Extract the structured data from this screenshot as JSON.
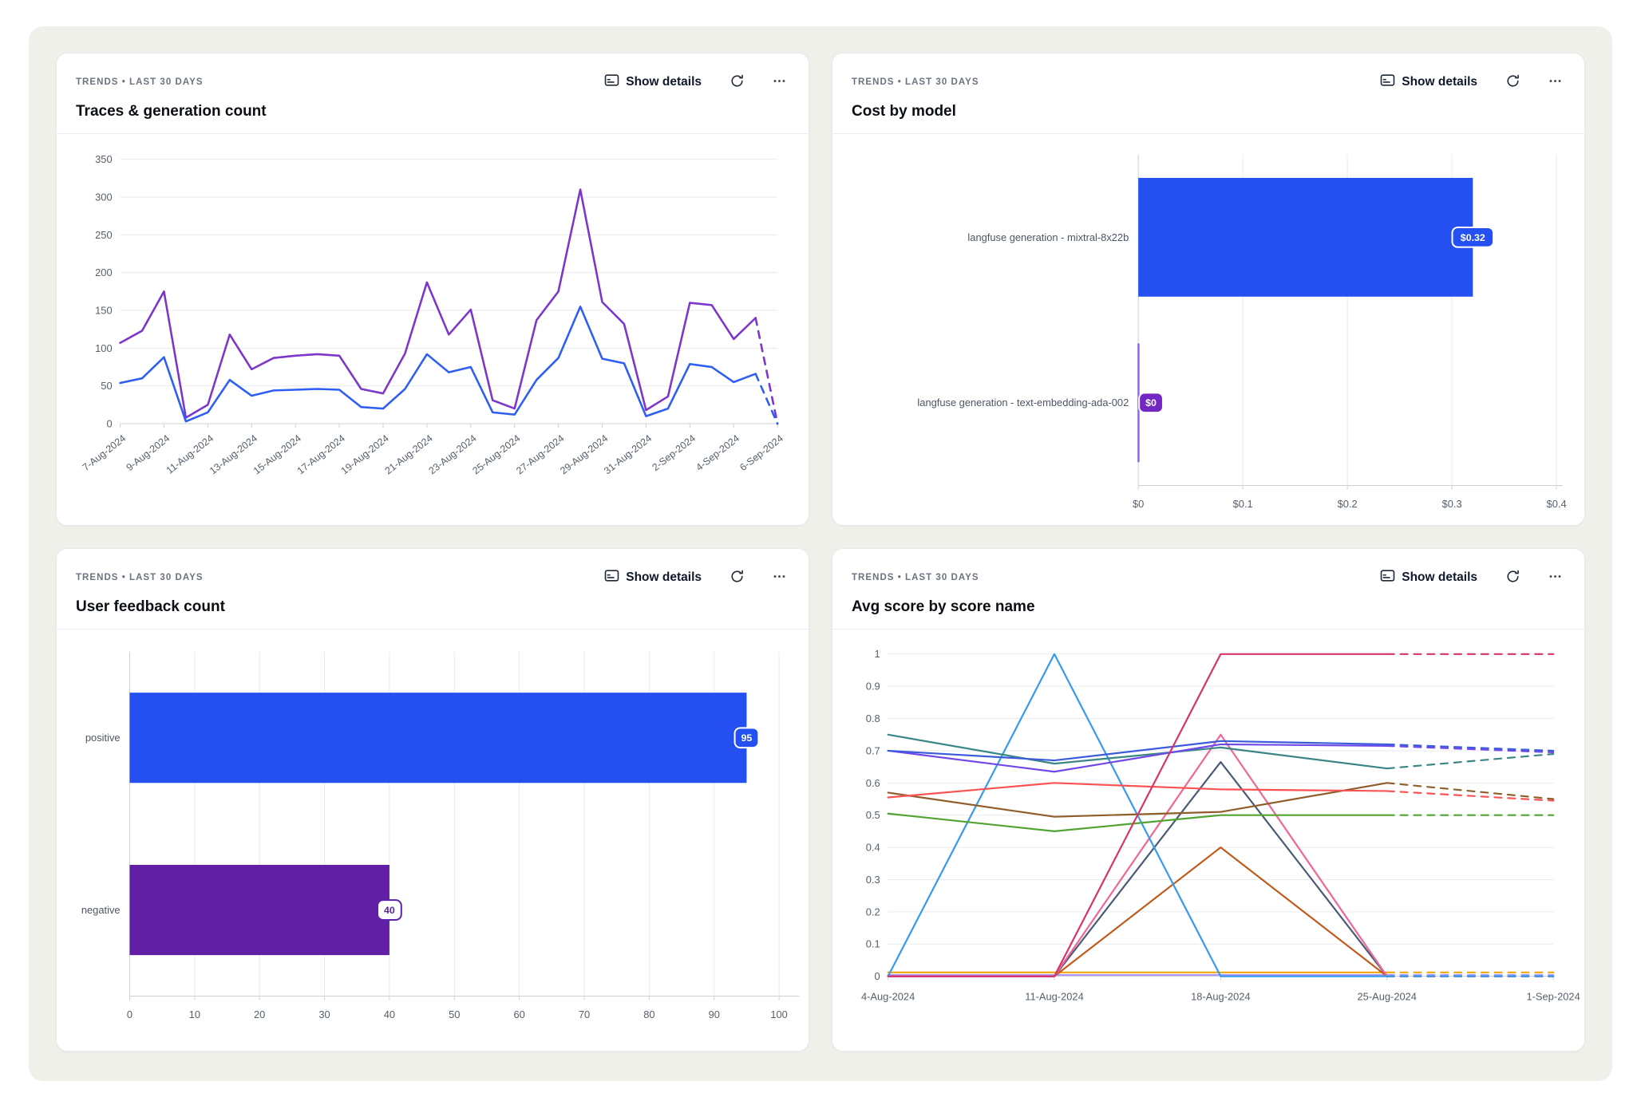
{
  "panel": {
    "background": "#f0f0ea"
  },
  "cards": [
    {
      "eyebrow": "TRENDS • LAST 30 DAYS",
      "title": "Traces & generation count",
      "show_details_label": "Show details"
    },
    {
      "eyebrow": "TRENDS • LAST 30 DAYS",
      "title": "Cost by model",
      "show_details_label": "Show details"
    },
    {
      "eyebrow": "TRENDS • LAST 30 DAYS",
      "title": "User feedback count",
      "show_details_label": "Show details"
    },
    {
      "eyebrow": "TRENDS • LAST 30 DAYS",
      "title": "Avg score by score name",
      "show_details_label": "Show details"
    }
  ],
  "chart_data": [
    {
      "type": "line",
      "title": "Traces & generation count",
      "x": [
        "7-Aug-2024",
        "8-Aug-2024",
        "9-Aug-2024",
        "10-Aug-2024",
        "11-Aug-2024",
        "12-Aug-2024",
        "13-Aug-2024",
        "14-Aug-2024",
        "15-Aug-2024",
        "16-Aug-2024",
        "17-Aug-2024",
        "18-Aug-2024",
        "19-Aug-2024",
        "20-Aug-2024",
        "21-Aug-2024",
        "22-Aug-2024",
        "23-Aug-2024",
        "24-Aug-2024",
        "25-Aug-2024",
        "26-Aug-2024",
        "27-Aug-2024",
        "28-Aug-2024",
        "29-Aug-2024",
        "30-Aug-2024",
        "31-Aug-2024",
        "1-Sep-2024",
        "2-Sep-2024",
        "3-Sep-2024",
        "4-Sep-2024",
        "5-Sep-2024",
        "6-Sep-2024"
      ],
      "tick_every": 2,
      "ylim": [
        0,
        350
      ],
      "y_step": 50,
      "dash_from": 29,
      "series": [
        {
          "name": "series-purple",
          "color": "#7c36c9",
          "values": [
            107,
            123,
            175,
            8,
            25,
            118,
            72,
            87,
            90,
            92,
            90,
            46,
            40,
            93,
            187,
            118,
            151,
            31,
            20,
            137,
            175,
            310,
            161,
            132,
            18,
            36,
            160,
            157,
            112,
            140,
            0
          ]
        },
        {
          "name": "series-blue",
          "color": "#2e5ff2",
          "values": [
            54,
            60,
            88,
            3,
            15,
            58,
            37,
            44,
            45,
            46,
            45,
            22,
            20,
            46,
            92,
            68,
            75,
            15,
            12,
            58,
            87,
            155,
            86,
            80,
            10,
            20,
            79,
            75,
            55,
            66,
            0
          ]
        }
      ]
    },
    {
      "type": "bar",
      "orientation": "horizontal",
      "title": "Cost by model",
      "categories": [
        "langfuse generation - mixtral-8x22b",
        "langfuse generation - text-embedding-ada-002"
      ],
      "values": [
        0.32,
        0
      ],
      "colors": [
        "#2450f2",
        "#9061f9"
      ],
      "badges": [
        {
          "text": "$0.32",
          "bg": "#2450f2",
          "fg": "#ffffff",
          "border": "#ffffff"
        },
        {
          "text": "$0",
          "bg": "#7227c4",
          "fg": "#ffffff",
          "border": "#ffffff"
        }
      ],
      "tick_values": [
        0,
        0.1,
        0.2,
        0.3,
        0.4
      ],
      "tick_labels": [
        "$0",
        "$0.1",
        "$0.2",
        "$0.3",
        "$0.4"
      ],
      "xlim": [
        0,
        0.4
      ]
    },
    {
      "type": "bar",
      "orientation": "horizontal",
      "title": "User feedback count",
      "categories": [
        "positive",
        "negative"
      ],
      "values": [
        95,
        40
      ],
      "colors": [
        "#2450f2",
        "#611fa5"
      ],
      "badges": [
        {
          "text": "95",
          "bg": "#2450f2",
          "fg": "#ffffff",
          "border": "#ffffff"
        },
        {
          "text": "40",
          "bg": "#ffffff",
          "fg": "#5b21a8",
          "border": "#5b21a8"
        }
      ],
      "tick_values": [
        0,
        10,
        20,
        30,
        40,
        50,
        60,
        70,
        80,
        90,
        100
      ],
      "tick_labels": [
        "0",
        "10",
        "20",
        "30",
        "40",
        "50",
        "60",
        "70",
        "80",
        "90",
        "100"
      ],
      "xlim": [
        0,
        100
      ]
    },
    {
      "type": "line",
      "title": "Avg score by score name",
      "x": [
        "4-Aug-2024",
        "11-Aug-2024",
        "18-Aug-2024",
        "25-Aug-2024",
        "1-Sep-2024"
      ],
      "tick_every": 1,
      "ylim": [
        0,
        1
      ],
      "y_step": 0.1,
      "dash_from": 3,
      "series": [
        {
          "name": "series-lavender",
          "color": "#b197fc",
          "values": [
            0.004,
            0.004,
            0.004,
            0.004,
            0.004
          ]
        },
        {
          "name": "series-amber",
          "color": "#f2a50c",
          "values": [
            0.012,
            0.012,
            0.012,
            0.012,
            0.012
          ]
        },
        {
          "name": "series-slate",
          "color": "#495a77",
          "values": [
            0,
            0,
            0.665,
            0,
            0
          ]
        },
        {
          "name": "series-chocolate",
          "color": "#bf5b1d",
          "values": [
            0,
            0,
            0.4,
            0,
            0
          ]
        },
        {
          "name": "series-pink",
          "color": "#f06595",
          "values": [
            0,
            0,
            0.75,
            0,
            0
          ]
        },
        {
          "name": "series-dodger-blue",
          "color": "#339af0",
          "values": [
            0,
            1,
            0,
            0,
            0
          ]
        },
        {
          "name": "series-green",
          "color": "#51a332",
          "values": [
            0.505,
            0.45,
            0.5,
            0.5,
            0.5
          ]
        },
        {
          "name": "series-brown",
          "color": "#8f5d2a",
          "values": [
            0.57,
            0.495,
            0.51,
            0.6,
            0.55
          ]
        },
        {
          "name": "series-red",
          "color": "#fa5252",
          "values": [
            0.555,
            0.6,
            0.58,
            0.575,
            0.545
          ]
        },
        {
          "name": "series-teal",
          "color": "#3a8686",
          "values": [
            0.75,
            0.66,
            0.71,
            0.645,
            0.69
          ]
        },
        {
          "name": "series-violet",
          "color": "#7048e8",
          "values": [
            0.7,
            0.635,
            0.72,
            0.715,
            0.695
          ]
        },
        {
          "name": "series-blue",
          "color": "#3b5bdb",
          "values": [
            0.7,
            0.67,
            0.73,
            0.72,
            0.7
          ]
        },
        {
          "name": "series-magenta",
          "color": "#d6336c",
          "values": [
            0,
            0,
            1,
            1,
            1
          ]
        }
      ]
    }
  ]
}
